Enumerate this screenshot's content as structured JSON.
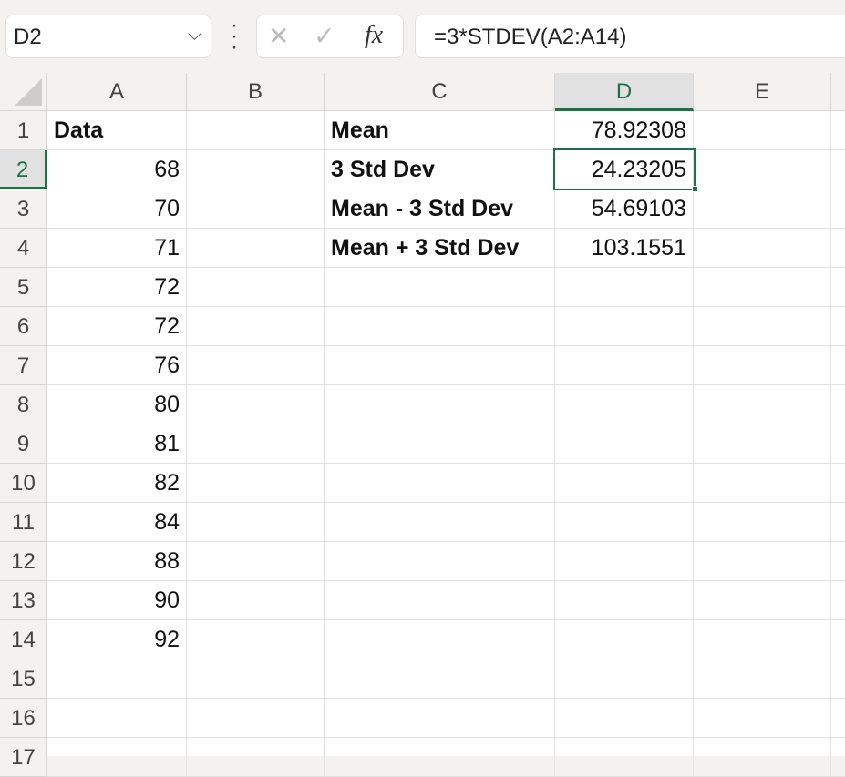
{
  "name_box": {
    "value": "D2"
  },
  "formula_bar": {
    "cancel_icon": "x-icon",
    "enter_icon": "check-icon",
    "fx_label": "fx",
    "value": "=3*STDEV(A2:A14)"
  },
  "colors": {
    "accent": "#1e7145"
  },
  "selected_cell": "D2",
  "columns": [
    "A",
    "B",
    "C",
    "D",
    "E"
  ],
  "row_numbers": [
    "1",
    "2",
    "3",
    "4",
    "5",
    "6",
    "7",
    "8",
    "9",
    "10",
    "11",
    "12",
    "13",
    "14",
    "15",
    "16",
    "17"
  ],
  "rows": [
    [
      "Data",
      "",
      "Mean",
      "78.92308",
      ""
    ],
    [
      "68",
      "",
      "3 Std Dev",
      "24.23205",
      ""
    ],
    [
      "70",
      "",
      "Mean - 3 Std Dev",
      "54.69103",
      ""
    ],
    [
      "71",
      "",
      "Mean + 3 Std Dev",
      "103.1551",
      ""
    ],
    [
      "72",
      "",
      "",
      "",
      ""
    ],
    [
      "72",
      "",
      "",
      "",
      ""
    ],
    [
      "76",
      "",
      "",
      "",
      ""
    ],
    [
      "80",
      "",
      "",
      "",
      ""
    ],
    [
      "81",
      "",
      "",
      "",
      ""
    ],
    [
      "82",
      "",
      "",
      "",
      ""
    ],
    [
      "84",
      "",
      "",
      "",
      ""
    ],
    [
      "88",
      "",
      "",
      "",
      ""
    ],
    [
      "90",
      "",
      "",
      "",
      ""
    ],
    [
      "92",
      "",
      "",
      "",
      ""
    ],
    [
      "",
      "",
      "",
      "",
      ""
    ],
    [
      "",
      "",
      "",
      "",
      ""
    ],
    [
      "",
      "",
      "",
      "",
      ""
    ]
  ]
}
